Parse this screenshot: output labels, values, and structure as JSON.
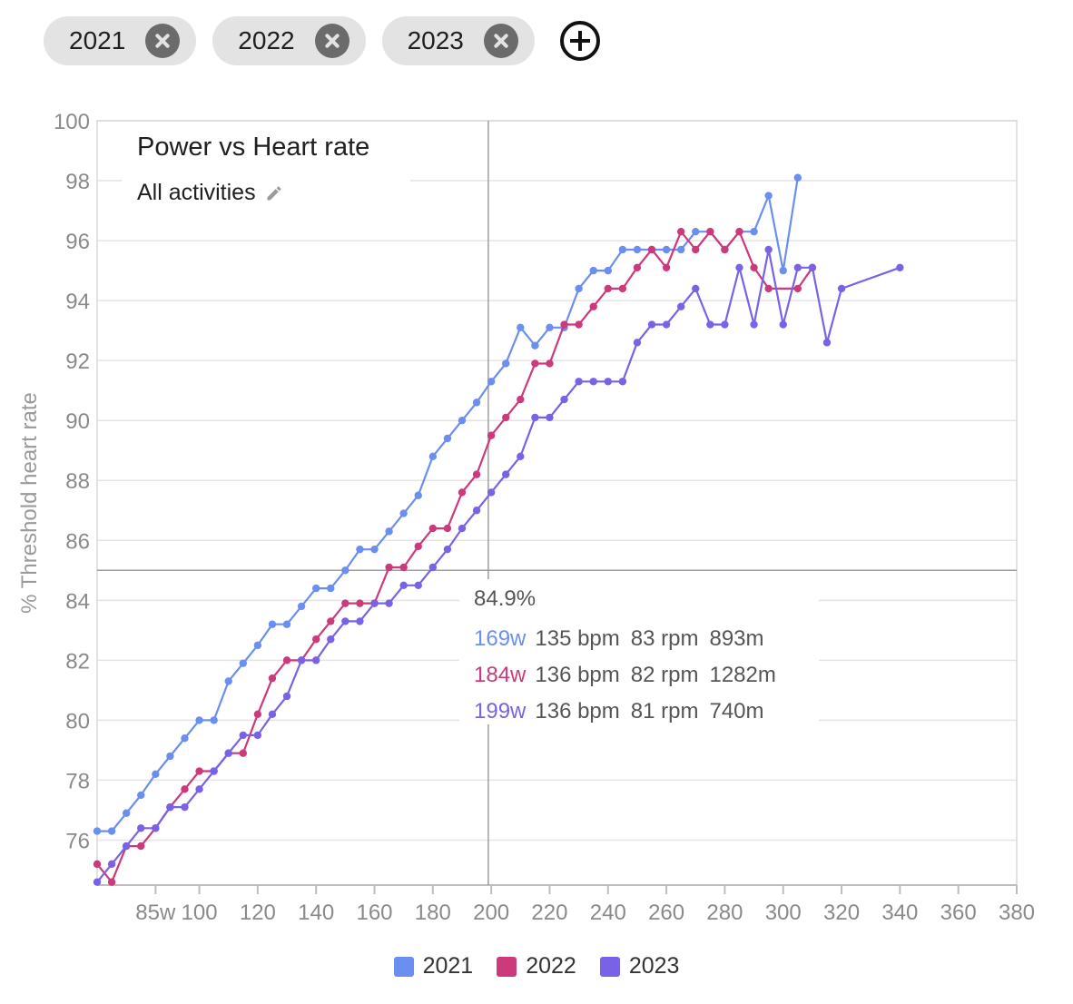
{
  "filters": {
    "chips": [
      {
        "label": "2021"
      },
      {
        "label": "2022"
      },
      {
        "label": "2023"
      }
    ]
  },
  "chart_header": {
    "title": "Power vs Heart rate",
    "subtitle": "All activities"
  },
  "tooltip": {
    "header": "84.9%",
    "rows": [
      {
        "watts": "169w",
        "bpm": "135 bpm",
        "rpm": "83 rpm",
        "dist": "893m",
        "color": "#6b8ff0"
      },
      {
        "watts": "184w",
        "bpm": "136 bpm",
        "rpm": "82 rpm",
        "dist": "1282m",
        "color": "#cc3a7c"
      },
      {
        "watts": "199w",
        "bpm": "136 bpm",
        "rpm": "81 rpm",
        "dist": "740m",
        "color": "#7a62e6"
      }
    ]
  },
  "chart_data": {
    "type": "line",
    "title": "",
    "xlabel": "",
    "ylabel": "% Threshold heart rate",
    "xlim": [
      65,
      380
    ],
    "ylim": [
      74.5,
      100
    ],
    "x_ticks": [
      85,
      100,
      120,
      140,
      160,
      180,
      200,
      220,
      240,
      260,
      280,
      300,
      320,
      340,
      360,
      380
    ],
    "x_tick_labels": [
      "85w",
      "100",
      "120",
      "140",
      "160",
      "180",
      "200",
      "220",
      "240",
      "260",
      "280",
      "300",
      "320",
      "340",
      "360",
      "380"
    ],
    "y_ticks": [
      76,
      78,
      80,
      82,
      84,
      86,
      88,
      90,
      92,
      94,
      96,
      98,
      100
    ],
    "crosshair": {
      "x": 199,
      "y": 85
    },
    "legend_position": "bottom",
    "series": [
      {
        "name": "2021",
        "color": "#6b8ff0",
        "points": [
          [
            65,
            76.3
          ],
          [
            70,
            76.3
          ],
          [
            75,
            76.9
          ],
          [
            80,
            77.5
          ],
          [
            85,
            78.2
          ],
          [
            90,
            78.8
          ],
          [
            95,
            79.4
          ],
          [
            100,
            80.0
          ],
          [
            105,
            80.0
          ],
          [
            110,
            81.3
          ],
          [
            115,
            81.9
          ],
          [
            120,
            82.5
          ],
          [
            125,
            83.2
          ],
          [
            130,
            83.2
          ],
          [
            135,
            83.8
          ],
          [
            140,
            84.4
          ],
          [
            145,
            84.4
          ],
          [
            150,
            85.0
          ],
          [
            155,
            85.7
          ],
          [
            160,
            85.7
          ],
          [
            165,
            86.3
          ],
          [
            170,
            86.9
          ],
          [
            175,
            87.5
          ],
          [
            180,
            88.8
          ],
          [
            185,
            89.4
          ],
          [
            190,
            90.0
          ],
          [
            195,
            90.6
          ],
          [
            200,
            91.3
          ],
          [
            205,
            91.9
          ],
          [
            210,
            93.1
          ],
          [
            215,
            92.5
          ],
          [
            220,
            93.1
          ],
          [
            225,
            93.1
          ],
          [
            230,
            94.4
          ],
          [
            235,
            95.0
          ],
          [
            240,
            95.0
          ],
          [
            245,
            95.7
          ],
          [
            250,
            95.7
          ],
          [
            255,
            95.7
          ],
          [
            260,
            95.7
          ],
          [
            265,
            95.7
          ],
          [
            270,
            96.3
          ],
          [
            275,
            96.3
          ],
          [
            280,
            95.7
          ],
          [
            285,
            96.3
          ],
          [
            290,
            96.3
          ],
          [
            295,
            97.5
          ],
          [
            300,
            95.0
          ],
          [
            305,
            98.1
          ]
        ]
      },
      {
        "name": "2022",
        "color": "#cc3a7c",
        "points": [
          [
            65,
            75.2
          ],
          [
            70,
            74.6
          ],
          [
            75,
            75.8
          ],
          [
            80,
            75.8
          ],
          [
            85,
            76.4
          ],
          [
            90,
            77.1
          ],
          [
            95,
            77.7
          ],
          [
            100,
            78.3
          ],
          [
            105,
            78.3
          ],
          [
            110,
            78.9
          ],
          [
            115,
            78.9
          ],
          [
            120,
            80.2
          ],
          [
            125,
            81.4
          ],
          [
            130,
            82.0
          ],
          [
            135,
            82.0
          ],
          [
            140,
            82.7
          ],
          [
            145,
            83.3
          ],
          [
            150,
            83.9
          ],
          [
            155,
            83.9
          ],
          [
            160,
            83.9
          ],
          [
            165,
            85.1
          ],
          [
            170,
            85.1
          ],
          [
            175,
            85.8
          ],
          [
            180,
            86.4
          ],
          [
            185,
            86.4
          ],
          [
            190,
            87.6
          ],
          [
            195,
            88.2
          ],
          [
            200,
            89.5
          ],
          [
            205,
            90.1
          ],
          [
            210,
            90.7
          ],
          [
            215,
            91.9
          ],
          [
            220,
            91.9
          ],
          [
            225,
            93.2
          ],
          [
            230,
            93.2
          ],
          [
            235,
            93.8
          ],
          [
            240,
            94.4
          ],
          [
            245,
            94.4
          ],
          [
            250,
            95.1
          ],
          [
            255,
            95.7
          ],
          [
            260,
            95.1
          ],
          [
            265,
            96.3
          ],
          [
            270,
            95.7
          ],
          [
            275,
            96.3
          ],
          [
            280,
            95.7
          ],
          [
            285,
            96.3
          ],
          [
            290,
            95.1
          ],
          [
            295,
            94.4
          ],
          [
            305,
            94.4
          ],
          [
            310,
            95.1
          ]
        ]
      },
      {
        "name": "2023",
        "color": "#7a62e6",
        "points": [
          [
            65,
            74.6
          ],
          [
            70,
            75.2
          ],
          [
            75,
            75.8
          ],
          [
            80,
            76.4
          ],
          [
            85,
            76.4
          ],
          [
            90,
            77.1
          ],
          [
            95,
            77.1
          ],
          [
            100,
            77.7
          ],
          [
            105,
            78.3
          ],
          [
            110,
            78.9
          ],
          [
            115,
            79.5
          ],
          [
            120,
            79.5
          ],
          [
            125,
            80.2
          ],
          [
            130,
            80.8
          ],
          [
            135,
            82.0
          ],
          [
            140,
            82.0
          ],
          [
            145,
            82.7
          ],
          [
            150,
            83.3
          ],
          [
            155,
            83.3
          ],
          [
            160,
            83.9
          ],
          [
            165,
            83.9
          ],
          [
            170,
            84.5
          ],
          [
            175,
            84.5
          ],
          [
            180,
            85.1
          ],
          [
            185,
            85.7
          ],
          [
            190,
            86.4
          ],
          [
            195,
            87.0
          ],
          [
            200,
            87.6
          ],
          [
            205,
            88.2
          ],
          [
            210,
            88.8
          ],
          [
            215,
            90.1
          ],
          [
            220,
            90.1
          ],
          [
            225,
            90.7
          ],
          [
            230,
            91.3
          ],
          [
            235,
            91.3
          ],
          [
            240,
            91.3
          ],
          [
            245,
            91.3
          ],
          [
            250,
            92.6
          ],
          [
            255,
            93.2
          ],
          [
            260,
            93.2
          ],
          [
            265,
            93.8
          ],
          [
            270,
            94.4
          ],
          [
            275,
            93.2
          ],
          [
            280,
            93.2
          ],
          [
            285,
            95.1
          ],
          [
            290,
            93.2
          ],
          [
            295,
            95.7
          ],
          [
            300,
            93.2
          ],
          [
            305,
            95.1
          ],
          [
            310,
            95.1
          ],
          [
            315,
            92.6
          ],
          [
            320,
            94.4
          ],
          [
            340,
            95.1
          ]
        ]
      }
    ]
  }
}
